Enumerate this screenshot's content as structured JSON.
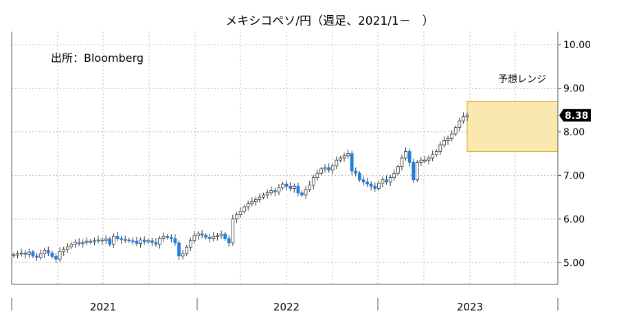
{
  "chart_data": {
    "type": "candlestick",
    "title": "メキシコペソ/円（週足、2021/1－　）",
    "source_note": "出所：Bloomberg",
    "range_label": "予想レンジ",
    "last_value_label": "8.38",
    "last_value": 8.38,
    "x_years": [
      "2021",
      "2022",
      "2023"
    ],
    "y_ticks": [
      "5.00",
      "6.00",
      "7.00",
      "8.00",
      "9.00",
      "10.00"
    ],
    "ylim": [
      4.5,
      10.3
    ],
    "forecast_range": {
      "low": 7.55,
      "high": 8.7
    },
    "colors": {
      "up": "#ffffff",
      "down": "#1f7fe0",
      "range_fill": "#fbe7b0",
      "range_stroke": "#e2a92c",
      "last_bg": "#000000"
    },
    "grid": true,
    "weekly_close": [
      5.18,
      5.2,
      5.22,
      5.19,
      5.24,
      5.15,
      5.12,
      5.2,
      5.28,
      5.22,
      5.14,
      5.08,
      5.25,
      5.3,
      5.36,
      5.42,
      5.46,
      5.44,
      5.47,
      5.49,
      5.48,
      5.5,
      5.52,
      5.5,
      5.54,
      5.42,
      5.6,
      5.55,
      5.53,
      5.52,
      5.5,
      5.49,
      5.44,
      5.52,
      5.48,
      5.5,
      5.46,
      5.42,
      5.55,
      5.6,
      5.58,
      5.55,
      5.45,
      5.15,
      5.2,
      5.35,
      5.5,
      5.62,
      5.66,
      5.63,
      5.58,
      5.55,
      5.6,
      5.62,
      5.65,
      5.55,
      5.45,
      6.0,
      6.1,
      6.18,
      6.28,
      6.35,
      6.4,
      6.45,
      6.5,
      6.55,
      6.6,
      6.65,
      6.62,
      6.72,
      6.8,
      6.75,
      6.7,
      6.75,
      6.6,
      6.55,
      6.68,
      6.78,
      6.95,
      7.05,
      7.15,
      7.18,
      7.12,
      7.22,
      7.35,
      7.4,
      7.45,
      7.5,
      7.1,
      7.05,
      6.9,
      6.85,
      6.8,
      6.75,
      6.7,
      6.82,
      6.9,
      6.85,
      6.95,
      7.05,
      7.2,
      7.4,
      7.55,
      7.3,
      6.9,
      7.3,
      7.35,
      7.35,
      7.4,
      7.48,
      7.55,
      7.7,
      7.8,
      7.85,
      7.95,
      8.1,
      8.25,
      8.35,
      8.38
    ]
  }
}
